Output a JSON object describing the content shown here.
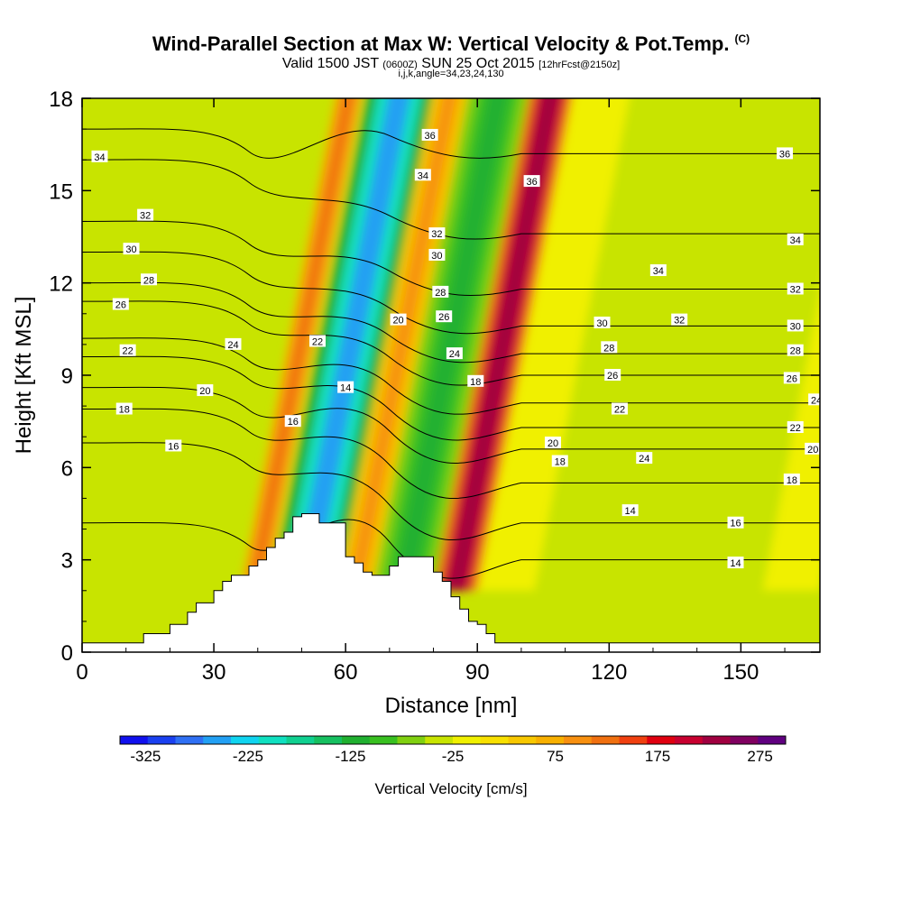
{
  "title": {
    "main": "Wind-Parallel Section at Max W: Vertical Velocity & Pot.Temp.",
    "copyright_mark": "(C)",
    "valid_prefix": "Valid 1500 JST",
    "valid_utc": "(0600Z)",
    "valid_date": "SUN 25 Oct 2015",
    "forecast": "[12hrFcst@2150z]",
    "indices": "i,j,k,angle=34,23,24,130"
  },
  "chart_data": {
    "type": "heatmap",
    "title": "Wind-Parallel Section at Max W: Vertical Velocity & Pot.Temp.",
    "xlabel": "Distance [nm]",
    "ylabel": "Height [Kft MSL]",
    "xlim": [
      0,
      168
    ],
    "ylim": [
      0,
      18
    ],
    "xticks": [
      0,
      30,
      60,
      90,
      120,
      150
    ],
    "yticks": [
      0,
      3,
      6,
      9,
      12,
      15,
      18
    ],
    "grid": false,
    "colorbar": {
      "label": "Vertical Velocity [cm/s]",
      "tick_labels": [
        "-325",
        "-225",
        "-125",
        "-25",
        "75",
        "175",
        "275"
      ],
      "tick_values": [
        -325,
        -225,
        -125,
        -25,
        75,
        175,
        275
      ],
      "range": [
        -350,
        300
      ],
      "colors": [
        "#1010ee",
        "#1a40f0",
        "#2f70f4",
        "#22a0f4",
        "#10d4f0",
        "#10e0c0",
        "#10d090",
        "#16c060",
        "#20b030",
        "#38c020",
        "#80d010",
        "#c8e400",
        "#f0f000",
        "#f8e000",
        "#f8c800",
        "#f8b000",
        "#f89010",
        "#f07010",
        "#f04010",
        "#e00010",
        "#c80030",
        "#a00040",
        "#800060",
        "#600080"
      ]
    },
    "velocity_bands": [
      {
        "x_start": 36,
        "x_end": 42,
        "w_peak": 125
      },
      {
        "x_start": 43,
        "x_end": 58,
        "w_peak": -250
      },
      {
        "x_start": 58,
        "x_end": 66,
        "w_peak": 100
      },
      {
        "x_start": 66,
        "x_end": 80,
        "w_peak": -125
      },
      {
        "x_start": 80,
        "x_end": 90,
        "w_peak": 250
      },
      {
        "x_start": 90,
        "x_end": 168,
        "w_peak": -40
      }
    ],
    "terrain_profile": {
      "x": [
        0,
        14,
        20,
        22,
        24,
        26,
        28,
        30,
        32,
        34,
        36,
        38,
        40,
        42,
        44,
        46,
        48,
        50,
        52,
        54,
        56,
        58,
        60,
        62,
        64,
        66,
        68,
        70,
        72,
        74,
        76,
        78,
        80,
        82,
        84,
        86,
        88,
        90,
        92,
        94,
        96,
        98,
        168
      ],
      "height": [
        0.3,
        0.6,
        0.9,
        0.9,
        1.3,
        1.6,
        1.6,
        2.0,
        2.3,
        2.5,
        2.5,
        2.8,
        3.0,
        3.4,
        3.7,
        3.9,
        4.4,
        4.5,
        4.5,
        4.2,
        4.2,
        4.2,
        3.1,
        2.9,
        2.6,
        2.5,
        2.5,
        2.8,
        3.1,
        3.1,
        3.1,
        3.1,
        2.6,
        2.3,
        1.8,
        1.4,
        1.0,
        0.9,
        0.6,
        0.3,
        0.3,
        0.3,
        0.3
      ]
    },
    "theta_contours": {
      "left_anchor": [
        {
          "level": "14",
          "height": 4.2
        },
        {
          "level": "16",
          "height": 6.8
        },
        {
          "level": "18",
          "height": 7.9
        },
        {
          "level": "20",
          "height": 8.6
        },
        {
          "level": "22",
          "height": 9.6
        },
        {
          "level": "24",
          "height": 10.2
        },
        {
          "level": "26",
          "height": 11.4
        },
        {
          "level": "28",
          "height": 12.0
        },
        {
          "level": "30",
          "height": 13.0
        },
        {
          "level": "32",
          "height": 14.0
        },
        {
          "level": "34",
          "height": 16.0
        },
        {
          "level": "36",
          "height": 17.0
        }
      ],
      "right_anchor": [
        {
          "level": "14",
          "height": 3.0
        },
        {
          "level": "16",
          "height": 4.2
        },
        {
          "level": "18",
          "height": 5.5
        },
        {
          "level": "20",
          "height": 6.6
        },
        {
          "level": "22",
          "height": 7.3
        },
        {
          "level": "24",
          "height": 8.1
        },
        {
          "level": "26",
          "height": 9.0
        },
        {
          "level": "28",
          "height": 9.7
        },
        {
          "level": "30",
          "height": 10.6
        },
        {
          "level": "32",
          "height": 11.8
        },
        {
          "level": "34",
          "height": 13.6
        },
        {
          "level": "36",
          "height": 16.2
        }
      ],
      "labels": [
        {
          "text": "34",
          "x": 5,
          "y": 16.1
        },
        {
          "text": "32",
          "x": 18,
          "y": 14.2
        },
        {
          "text": "30",
          "x": 14,
          "y": 13.1
        },
        {
          "text": "28",
          "x": 19,
          "y": 12.1
        },
        {
          "text": "26",
          "x": 11,
          "y": 11.3
        },
        {
          "text": "24",
          "x": 43,
          "y": 10.0
        },
        {
          "text": "22",
          "x": 13,
          "y": 9.8
        },
        {
          "text": "22",
          "x": 67,
          "y": 10.1
        },
        {
          "text": "20",
          "x": 90,
          "y": 10.8
        },
        {
          "text": "20",
          "x": 35,
          "y": 8.5
        },
        {
          "text": "18",
          "x": 12,
          "y": 7.9
        },
        {
          "text": "16",
          "x": 26,
          "y": 6.7
        },
        {
          "text": "16",
          "x": 60,
          "y": 7.5
        },
        {
          "text": "14",
          "x": 75,
          "y": 8.6
        },
        {
          "text": "36",
          "x": 99,
          "y": 16.8
        },
        {
          "text": "34",
          "x": 97,
          "y": 15.5
        },
        {
          "text": "32",
          "x": 101,
          "y": 13.6
        },
        {
          "text": "30",
          "x": 101,
          "y": 12.9
        },
        {
          "text": "28",
          "x": 102,
          "y": 11.7
        },
        {
          "text": "26",
          "x": 103,
          "y": 10.9
        },
        {
          "text": "24",
          "x": 106,
          "y": 9.7
        },
        {
          "text": "18",
          "x": 112,
          "y": 8.8
        },
        {
          "text": "30",
          "x": 148,
          "y": 10.7
        },
        {
          "text": "28",
          "x": 150,
          "y": 9.9
        },
        {
          "text": "26",
          "x": 151,
          "y": 9.0
        },
        {
          "text": "22",
          "x": 153,
          "y": 7.9
        },
        {
          "text": "20",
          "x": 134,
          "y": 6.8
        },
        {
          "text": "18",
          "x": 136,
          "y": 6.2
        },
        {
          "text": "36",
          "x": 128,
          "y": 15.3
        },
        {
          "text": "34",
          "x": 164,
          "y": 12.4
        },
        {
          "text": "32",
          "x": 170,
          "y": 10.8
        },
        {
          "text": "24",
          "x": 160,
          "y": 6.3
        },
        {
          "text": "14",
          "x": 156,
          "y": 4.6
        },
        {
          "text": "36",
          "x": 200,
          "y": 16.2
        },
        {
          "text": "34",
          "x": 203,
          "y": 13.4
        },
        {
          "text": "32",
          "x": 203,
          "y": 11.8
        },
        {
          "text": "30",
          "x": 203,
          "y": 10.6
        },
        {
          "text": "28",
          "x": 203,
          "y": 9.8
        },
        {
          "text": "26",
          "x": 202,
          "y": 8.9
        },
        {
          "text": "24",
          "x": 209,
          "y": 8.2
        },
        {
          "text": "22",
          "x": 203,
          "y": 7.3
        },
        {
          "text": "20",
          "x": 208,
          "y": 6.6
        },
        {
          "text": "18",
          "x": 202,
          "y": 5.6
        },
        {
          "text": "16",
          "x": 186,
          "y": 4.2
        },
        {
          "text": "14",
          "x": 186,
          "y": 2.9
        }
      ]
    }
  }
}
